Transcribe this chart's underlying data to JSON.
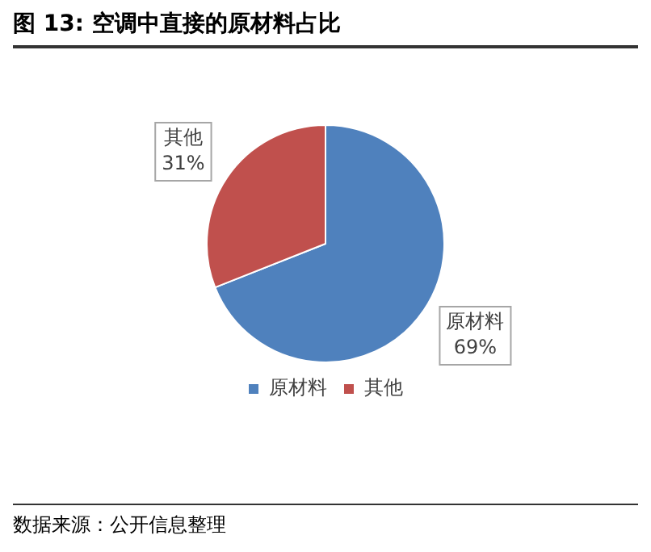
{
  "chart_data": {
    "type": "pie",
    "title": "图  13:  空调中直接的原材料占比",
    "categories": [
      "原材料",
      "其他"
    ],
    "values": [
      69,
      31
    ],
    "colors": [
      "#4f81bd",
      "#c0504d"
    ],
    "value_labels": [
      "69%",
      "31%"
    ],
    "legend": "bottom",
    "annotations": [
      "数据来源：公开信息整理"
    ]
  }
}
